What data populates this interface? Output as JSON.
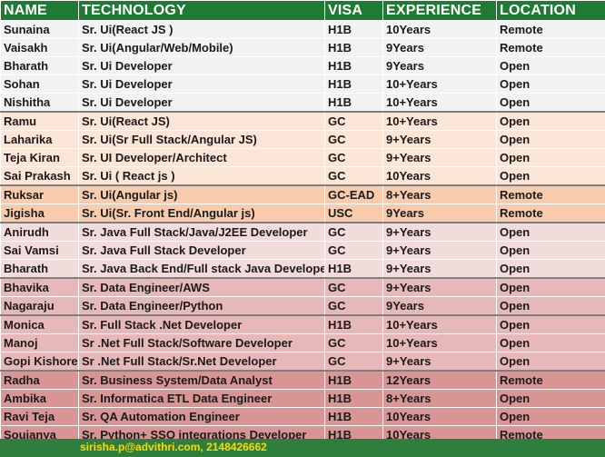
{
  "headers": [
    "NAME",
    "TECHNOLOGY",
    "VISA",
    "EXPERIENCE",
    "LOCATION"
  ],
  "rows": [
    {
      "group": "g1",
      "sep": false,
      "cells": [
        "Sunaina",
        "Sr. Ui(React JS )",
        "H1B",
        "10Years",
        "Remote"
      ]
    },
    {
      "group": "g1",
      "sep": false,
      "cells": [
        "Vaisakh",
        "Sr. Ui(Angular/Web/Mobile)",
        "H1B",
        "9Years",
        "Remote"
      ]
    },
    {
      "group": "g1",
      "sep": false,
      "cells": [
        "Bharath",
        "Sr. Ui Developer",
        "H1B",
        "9Years",
        "Open"
      ]
    },
    {
      "group": "g1",
      "sep": false,
      "cells": [
        "Sohan",
        "Sr. Ui Developer",
        "H1B",
        "10+Years",
        "Open"
      ]
    },
    {
      "group": "g1",
      "sep": false,
      "cells": [
        "Nishitha",
        "Sr. Ui Developer",
        "H1B",
        "10+Years",
        "Open"
      ]
    },
    {
      "group": "g2",
      "sep": true,
      "cells": [
        "Ramu",
        "Sr. Ui(React JS)",
        "GC",
        "10+Years",
        "Open"
      ]
    },
    {
      "group": "g2",
      "sep": false,
      "cells": [
        "Laharika",
        "Sr. Ui(Sr Full Stack/Angular JS)",
        "GC",
        "9+Years",
        "Open"
      ]
    },
    {
      "group": "g2",
      "sep": false,
      "cells": [
        "Teja Kiran",
        "Sr. UI Developer/Architect",
        "GC",
        "9+Years",
        "Open"
      ]
    },
    {
      "group": "g2",
      "sep": false,
      "cells": [
        "Sai Prakash",
        "Sr. Ui ( React js )",
        "GC",
        "10Years",
        "Open"
      ]
    },
    {
      "group": "g3",
      "sep": true,
      "cells": [
        "Ruksar",
        "Sr. Ui(Angular js)",
        "GC-EAD",
        "8+Years",
        "Remote"
      ]
    },
    {
      "group": "g3",
      "sep": false,
      "cells": [
        "Jigisha",
        "Sr. Ui(Sr. Front End/Angular js)",
        "USC",
        "9Years",
        "Remote"
      ]
    },
    {
      "group": "g4",
      "sep": true,
      "cells": [
        "Anirudh",
        "Sr. Java Full Stack/Java/J2EE Developer",
        "GC",
        "9+Years",
        "Open"
      ]
    },
    {
      "group": "g4",
      "sep": false,
      "cells": [
        "Sai Vamsi",
        "Sr. Java Full Stack Developer",
        "GC",
        "9+Years",
        "Open"
      ]
    },
    {
      "group": "g4",
      "sep": false,
      "cells": [
        "Bharath",
        "Sr. Java Back End/Full stack Java Developer",
        "H1B",
        "9+Years",
        "Open"
      ]
    },
    {
      "group": "g5",
      "sep": true,
      "cells": [
        "Bhavika",
        "Sr. Data Engineer/AWS",
        "GC",
        "9+Years",
        "Open"
      ]
    },
    {
      "group": "g5",
      "sep": false,
      "cells": [
        "Nagaraju",
        "Sr. Data Engineer/Python",
        "GC",
        "9Years",
        "Open"
      ]
    },
    {
      "group": "g5",
      "sep": true,
      "cells": [
        "Monica",
        "Sr. Full Stack .Net Developer",
        "H1B",
        "10+Years",
        "Open"
      ]
    },
    {
      "group": "g5",
      "sep": false,
      "cells": [
        "Manoj",
        "Sr .Net Full Stack/Software Developer",
        "GC",
        "10+Years",
        "Open"
      ]
    },
    {
      "group": "g5",
      "sep": false,
      "cells": [
        "Gopi Kishore",
        "Sr .Net Full Stack/Sr.Net Developer",
        "GC",
        "9+Years",
        "Open"
      ]
    },
    {
      "group": "g6",
      "sep": true,
      "cells": [
        "Radha",
        "Sr. Business System/Data Analyst",
        "H1B",
        "12Years",
        "Remote"
      ]
    },
    {
      "group": "g6",
      "sep": false,
      "cells": [
        "Ambika",
        "Sr. Informatica ETL Data Engineer",
        "H1B",
        "8+Years",
        "Open"
      ]
    },
    {
      "group": "g6",
      "sep": false,
      "cells": [
        "Ravi Teja",
        "Sr. QA Automation Engineer",
        "H1B",
        "10Years",
        "Open"
      ]
    },
    {
      "group": "g6",
      "sep": false,
      "cells": [
        "Soujanya",
        "Sr. Python+ SSO integrations Developer",
        "H1B",
        "10Years",
        "Remote"
      ]
    }
  ],
  "footer": "sirisha.p@advithri.com, 2148426662",
  "colors": {
    "header_bg": "#1f7a34",
    "header_text": "#ffffff",
    "footer_bg": "#2e7f3e",
    "footer_text": "#ffd800"
  }
}
